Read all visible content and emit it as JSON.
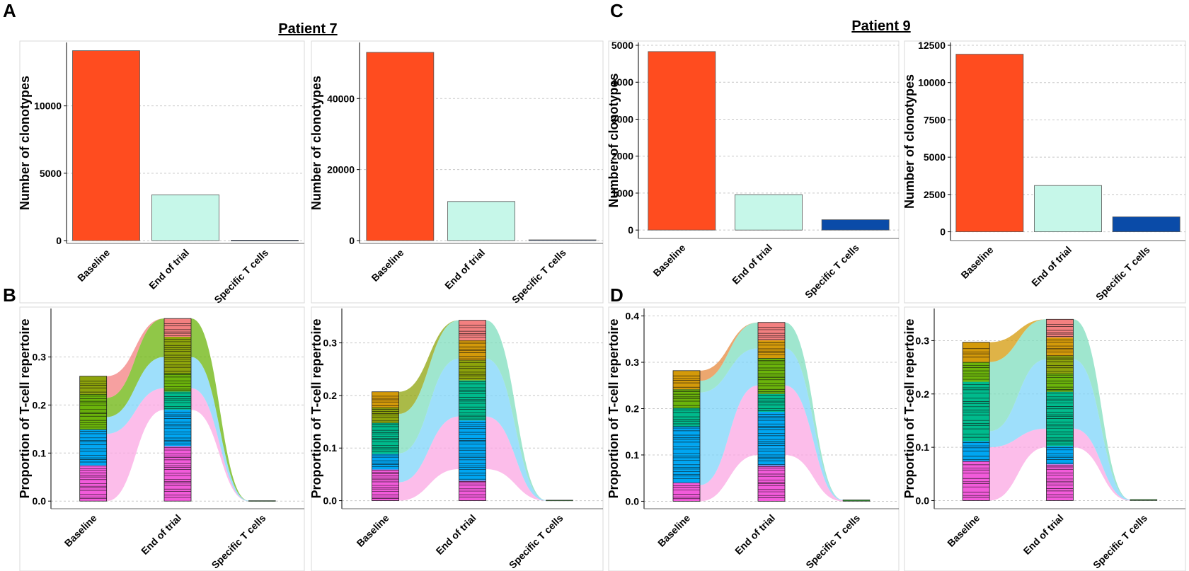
{
  "panel_letters": {
    "a": "A",
    "b": "B",
    "c": "C",
    "d": "D"
  },
  "titles": {
    "left": "Patient 7",
    "right": "Patient 9"
  },
  "colors": {
    "baseline": "#FF4C1F",
    "end_of_trial": "#C6F7E9",
    "specific": "#0A4BA8",
    "pink": "#F25BDA",
    "light_pink": "#FBA7E3",
    "sky": "#00A6F2",
    "light_sky": "#7ED4FA",
    "teal": "#00BA8C",
    "light_teal": "#7FDDBE",
    "green": "#6BB40B",
    "olive": "#8DA30B",
    "gold": "#D49A0A",
    "salmon": "#F38080",
    "orange": "#E68A3F"
  },
  "chart_data": [
    {
      "id": "A1",
      "type": "bar",
      "panel": "A",
      "patient": "Patient 7",
      "categories": [
        "Baseline",
        "End of trial",
        "Specific T cells"
      ],
      "values": [
        14100,
        3400,
        30
      ],
      "ylabel": "Number of clonotypes",
      "ylim": [
        0,
        14500
      ],
      "yticks": [
        0,
        5000,
        10000
      ],
      "ytick_labels": [
        "0",
        "5000",
        "10000"
      ]
    },
    {
      "id": "A2",
      "type": "bar",
      "panel": "A",
      "patient": "Patient 7",
      "categories": [
        "Baseline",
        "End of trial",
        "Specific T cells"
      ],
      "values": [
        53000,
        11000,
        200
      ],
      "ylabel": "Number of clonotypes",
      "ylim": [
        0,
        55000
      ],
      "yticks": [
        0,
        20000,
        40000
      ],
      "ytick_labels": [
        "0",
        "20000",
        "40000"
      ]
    },
    {
      "id": "C1",
      "type": "bar",
      "panel": "C",
      "patient": "Patient 9",
      "categories": [
        "Baseline",
        "End of trial",
        "Specific T cells"
      ],
      "values": [
        4830,
        960,
        280
      ],
      "ylabel": "Number of clonotypes",
      "ylim": [
        -150,
        5000
      ],
      "yticks": [
        0,
        1000,
        2000,
        3000,
        4000,
        5000
      ],
      "ytick_labels": [
        "0",
        "1000",
        "2000",
        "3000",
        "4000",
        "5000"
      ]
    },
    {
      "id": "C2",
      "type": "bar",
      "panel": "C",
      "patient": "Patient 9",
      "categories": [
        "Baseline",
        "End of trial",
        "Specific T cells"
      ],
      "values": [
        11900,
        3100,
        1000
      ],
      "ylabel": "Number of clonotypes",
      "ylim": [
        -400,
        12500
      ],
      "yticks": [
        0,
        2500,
        5000,
        7500,
        10000,
        12500
      ],
      "ytick_labels": [
        "0",
        "2500",
        "5000",
        "7500",
        "10000",
        "12500"
      ]
    },
    {
      "id": "B1",
      "type": "area",
      "subtype": "alluvial",
      "panel": "B",
      "patient": "Patient 7",
      "categories": [
        "Baseline",
        "End of trial",
        "Specific T cells"
      ],
      "ylabel": "Proportion of T-cell repertoire",
      "ylim": [
        -0.01,
        0.395
      ],
      "yticks": [
        0,
        0.1,
        0.2,
        0.3
      ],
      "ytick_labels": [
        "0.0",
        "0.1",
        "0.2",
        "0.3"
      ],
      "totals": [
        0.26,
        0.38,
        0.001
      ],
      "flow_band": [
        {
          "color": "light_pink",
          "bounds": [
            0.0,
            0.14,
            0.19,
            0.0
          ]
        },
        {
          "color": "light_sky",
          "bounds": [
            0.14,
            0.175,
            0.235,
            0.0
          ]
        },
        {
          "color": "green",
          "bounds": [
            0.175,
            0.215,
            0.3,
            0.001
          ]
        },
        {
          "color": "salmon",
          "bounds": [
            0.215,
            0.26,
            0.38,
            0.001
          ]
        }
      ],
      "stack_colors": [
        [
          "pink",
          "pink",
          "sky",
          "sky",
          "green",
          "green",
          "olive"
        ],
        [
          "pink",
          "pink",
          "pink",
          "sky",
          "sky",
          "teal",
          "green",
          "olive",
          "olive",
          "salmon"
        ]
      ]
    },
    {
      "id": "B2",
      "type": "area",
      "subtype": "alluvial",
      "panel": "B",
      "patient": "Patient 7",
      "categories": [
        "Baseline",
        "End of trial",
        "Specific T cells"
      ],
      "ylabel": "Proportion of T-cell repertoire",
      "ylim": [
        -0.01,
        0.36
      ],
      "yticks": [
        0,
        0.1,
        0.2,
        0.3
      ],
      "ytick_labels": [
        "0.0",
        "0.1",
        "0.2",
        "0.3"
      ],
      "totals": [
        0.207,
        0.343,
        0.001
      ],
      "flow_band": [
        {
          "color": "light_pink",
          "bounds": [
            0.0,
            0.035,
            0.06,
            0.0
          ]
        },
        {
          "color": "light_sky",
          "bounds": [
            0.035,
            0.09,
            0.16,
            0.0
          ]
        },
        {
          "color": "light_teal",
          "bounds": [
            0.09,
            0.165,
            0.27,
            0.001
          ]
        },
        {
          "color": "olive",
          "bounds": [
            0.165,
            0.207,
            0.343,
            0.001
          ]
        }
      ],
      "stack_colors": [
        [
          "pink",
          "pink",
          "sky",
          "teal",
          "teal",
          "olive",
          "gold"
        ],
        [
          "pink",
          "sky",
          "sky",
          "sky",
          "teal",
          "teal",
          "olive",
          "gold",
          "salmon"
        ]
      ]
    },
    {
      "id": "D1",
      "type": "area",
      "subtype": "alluvial",
      "panel": "D",
      "patient": "Patient 9",
      "categories": [
        "Baseline",
        "End of trial",
        "Specific T cells"
      ],
      "ylabel": "Proportion of T-cell repertoire",
      "ylim": [
        -0.01,
        0.41
      ],
      "yticks": [
        0,
        0.1,
        0.2,
        0.3,
        0.4
      ],
      "ytick_labels": [
        "0.0",
        "0.1",
        "0.2",
        "0.3",
        "0.4"
      ],
      "totals": [
        0.282,
        0.386,
        0.003
      ],
      "flow_band": [
        {
          "color": "light_pink",
          "bounds": [
            0.0,
            0.035,
            0.1,
            0.0
          ]
        },
        {
          "color": "light_sky",
          "bounds": [
            0.035,
            0.235,
            0.25,
            0.002
          ]
        },
        {
          "color": "light_teal",
          "bounds": [
            0.235,
            0.26,
            0.33,
            0.003
          ]
        },
        {
          "color": "orange",
          "bounds": [
            0.26,
            0.282,
            0.386,
            0.003
          ]
        }
      ],
      "stack_colors": [
        [
          "pink",
          "sky",
          "sky",
          "sky",
          "teal",
          "green",
          "gold"
        ],
        [
          "pink",
          "pink",
          "sky",
          "sky",
          "sky",
          "teal",
          "green",
          "green",
          "gold",
          "salmon"
        ]
      ]
    },
    {
      "id": "D2",
      "type": "area",
      "subtype": "alluvial",
      "panel": "D",
      "patient": "Patient 9",
      "categories": [
        "Baseline",
        "End of trial",
        "Specific T cells"
      ],
      "ylabel": "Proportion of T-cell repertoire",
      "ylim": [
        -0.01,
        0.355
      ],
      "yticks": [
        0,
        0.1,
        0.2,
        0.3
      ],
      "ytick_labels": [
        "0.0",
        "0.1",
        "0.2",
        "0.3"
      ],
      "totals": [
        0.297,
        0.34,
        0.002
      ],
      "flow_band": [
        {
          "color": "light_pink",
          "bounds": [
            0.0,
            0.1,
            0.1,
            0.0
          ]
        },
        {
          "color": "light_sky",
          "bounds": [
            0.1,
            0.13,
            0.135,
            0.001
          ]
        },
        {
          "color": "light_teal",
          "bounds": [
            0.13,
            0.26,
            0.265,
            0.002
          ]
        },
        {
          "color": "gold",
          "bounds": [
            0.26,
            0.297,
            0.34,
            0.002
          ]
        }
      ],
      "stack_colors": [
        [
          "pink",
          "pink",
          "sky",
          "teal",
          "teal",
          "teal",
          "green",
          "gold"
        ],
        [
          "pink",
          "pink",
          "sky",
          "teal",
          "teal",
          "teal",
          "green",
          "olive",
          "gold",
          "salmon"
        ]
      ]
    }
  ]
}
